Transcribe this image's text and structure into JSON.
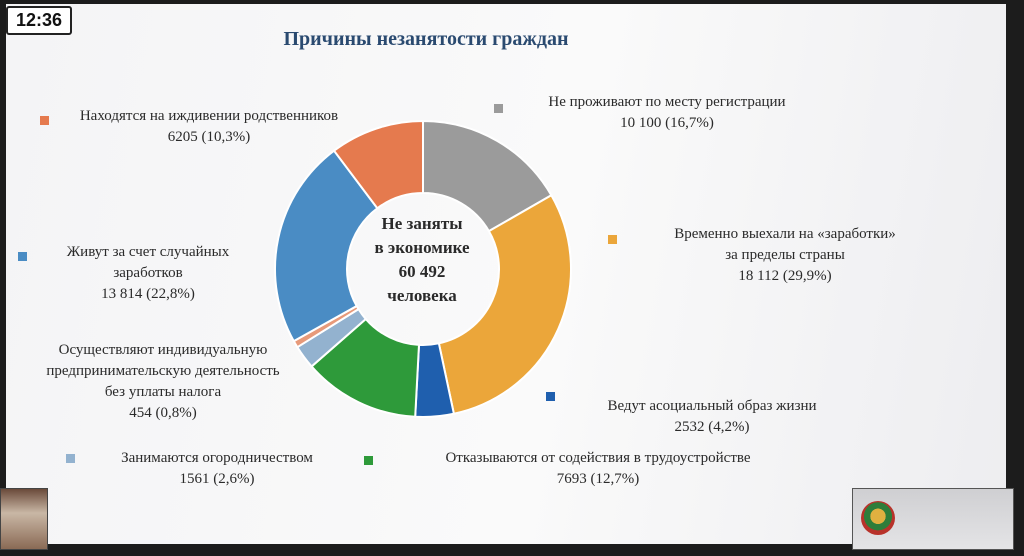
{
  "clock": "12:36",
  "colors": {
    "orange": "#e57a4e",
    "gray": "#9b9b9b",
    "yellow": "#eba63a",
    "blue": "#1f5fae",
    "green": "#2e9a3a",
    "lightblue": "#93b2cf",
    "salmon": "#e79a7a",
    "steelblue": "#4a8cc4"
  },
  "chart_data": {
    "type": "pie",
    "title": "Причины незанятости граждан",
    "center_text": [
      "Не заняты",
      "в экономике",
      "60 492",
      "человека"
    ],
    "slices": [
      {
        "lines": [
          "Не проживают по месту регистрации"
        ],
        "value_text": "10 100 (16,7%)",
        "value": 10100,
        "percent": 16.7,
        "color": "#9b9b9b"
      },
      {
        "lines": [
          "Временно выехали на «заработки»",
          "за пределы страны"
        ],
        "value_text": "18 112 (29,9%)",
        "value": 18112,
        "percent": 29.9,
        "color": "#eba63a"
      },
      {
        "lines": [
          "Ведут асоциальный образ жизни"
        ],
        "value_text": "2532 (4,2%)",
        "value": 2532,
        "percent": 4.2,
        "color": "#1f5fae"
      },
      {
        "lines": [
          "Отказываются от содействия в трудоустройстве"
        ],
        "value_text": "7693 (12,7%)",
        "value": 7693,
        "percent": 12.7,
        "color": "#2e9a3a"
      },
      {
        "lines": [
          "Занимаются огородничеством"
        ],
        "value_text": "1561 (2,6%)",
        "value": 1561,
        "percent": 2.6,
        "color": "#93b2cf"
      },
      {
        "lines": [
          "Осуществляют индивидуальную",
          "предпринимательскую деятельность",
          "без уплаты налога"
        ],
        "value_text": "454 (0,8%)",
        "value": 454,
        "percent": 0.8,
        "color": "#e79a7a"
      },
      {
        "lines": [
          "Живут за счет случайных",
          "заработков"
        ],
        "value_text": "13 814 (22,8%)",
        "value": 13814,
        "percent": 22.8,
        "color": "#4a8cc4"
      },
      {
        "lines": [
          "Находятся на иждивении родственников"
        ],
        "value_text": "6205 (10,3%)",
        "value": 6205,
        "percent": 10.3,
        "color": "#e57a4e"
      }
    ]
  }
}
